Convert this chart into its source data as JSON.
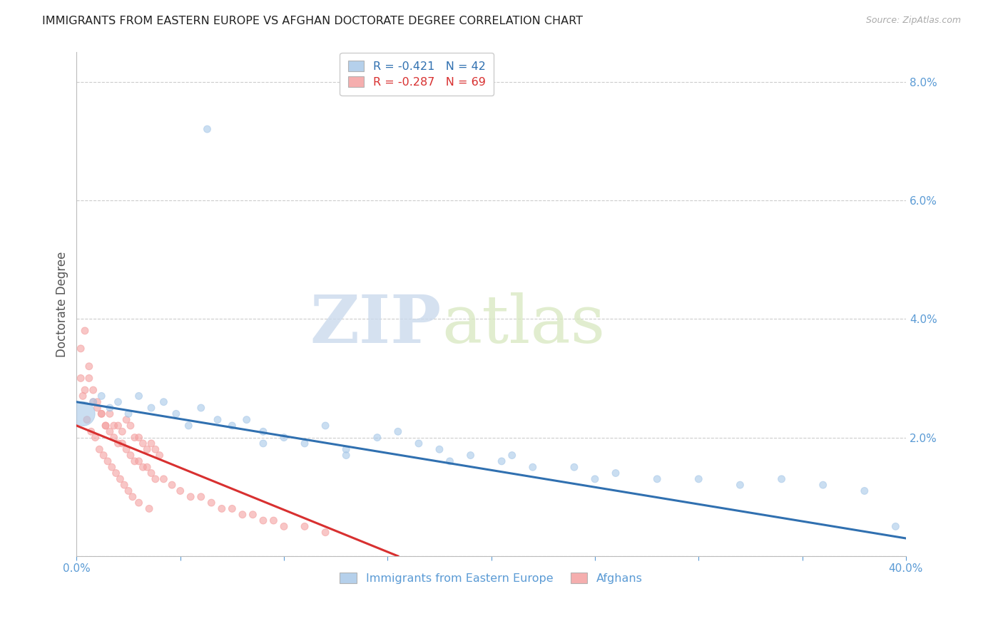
{
  "title": "IMMIGRANTS FROM EASTERN EUROPE VS AFGHAN DOCTORATE DEGREE CORRELATION CHART",
  "source": "Source: ZipAtlas.com",
  "ylabel_left": "Doctorate Degree",
  "watermark_zip": "ZIP",
  "watermark_atlas": "atlas",
  "legend_line1": "R = -0.421   N = 42",
  "legend_line2": "R = -0.287   N = 69",
  "xmin": 0.0,
  "xmax": 0.4,
  "ymin": 0.0,
  "ymax": 0.085,
  "yticks_right": [
    0.0,
    0.02,
    0.04,
    0.06,
    0.08
  ],
  "ytick_labels_right": [
    "",
    "2.0%",
    "4.0%",
    "6.0%",
    "8.0%"
  ],
  "xticks": [
    0.0,
    0.05,
    0.1,
    0.15,
    0.2,
    0.25,
    0.3,
    0.35,
    0.4
  ],
  "xtick_labels": [
    "0.0%",
    "",
    "",
    "",
    "",
    "",
    "",
    "",
    "40.0%"
  ],
  "blue_color": "#a8c8e8",
  "pink_color": "#f4a0a0",
  "blue_line_color": "#3070b0",
  "pink_line_color": "#d83030",
  "blue_scatter_x": [
    0.063,
    0.003,
    0.008,
    0.012,
    0.016,
    0.02,
    0.025,
    0.03,
    0.036,
    0.042,
    0.048,
    0.054,
    0.06,
    0.068,
    0.075,
    0.082,
    0.09,
    0.1,
    0.11,
    0.12,
    0.13,
    0.145,
    0.155,
    0.165,
    0.175,
    0.19,
    0.205,
    0.22,
    0.24,
    0.26,
    0.28,
    0.3,
    0.32,
    0.34,
    0.36,
    0.38,
    0.395,
    0.21,
    0.25,
    0.18,
    0.13,
    0.09
  ],
  "blue_scatter_y": [
    0.072,
    0.024,
    0.026,
    0.027,
    0.025,
    0.026,
    0.024,
    0.027,
    0.025,
    0.026,
    0.024,
    0.022,
    0.025,
    0.023,
    0.022,
    0.023,
    0.021,
    0.02,
    0.019,
    0.022,
    0.018,
    0.02,
    0.021,
    0.019,
    0.018,
    0.017,
    0.016,
    0.015,
    0.015,
    0.014,
    0.013,
    0.013,
    0.012,
    0.013,
    0.012,
    0.011,
    0.005,
    0.017,
    0.013,
    0.016,
    0.017,
    0.019
  ],
  "blue_scatter_s": [
    50,
    600,
    50,
    50,
    50,
    50,
    50,
    50,
    50,
    50,
    50,
    50,
    50,
    50,
    50,
    50,
    50,
    50,
    50,
    50,
    50,
    50,
    50,
    50,
    50,
    50,
    50,
    50,
    50,
    50,
    50,
    50,
    50,
    50,
    50,
    50,
    50,
    50,
    50,
    50,
    50,
    50
  ],
  "pink_scatter_x": [
    0.002,
    0.004,
    0.006,
    0.008,
    0.01,
    0.012,
    0.014,
    0.016,
    0.018,
    0.02,
    0.022,
    0.024,
    0.026,
    0.028,
    0.03,
    0.032,
    0.034,
    0.036,
    0.038,
    0.04,
    0.004,
    0.006,
    0.008,
    0.01,
    0.012,
    0.014,
    0.016,
    0.018,
    0.02,
    0.022,
    0.024,
    0.026,
    0.028,
    0.03,
    0.032,
    0.034,
    0.036,
    0.038,
    0.042,
    0.046,
    0.05,
    0.055,
    0.06,
    0.065,
    0.07,
    0.075,
    0.08,
    0.085,
    0.09,
    0.095,
    0.1,
    0.11,
    0.12,
    0.002,
    0.003,
    0.005,
    0.007,
    0.009,
    0.011,
    0.013,
    0.015,
    0.017,
    0.019,
    0.021,
    0.023,
    0.025,
    0.027,
    0.03,
    0.035
  ],
  "pink_scatter_y": [
    0.035,
    0.028,
    0.03,
    0.026,
    0.025,
    0.024,
    0.022,
    0.024,
    0.022,
    0.022,
    0.021,
    0.023,
    0.022,
    0.02,
    0.02,
    0.019,
    0.018,
    0.019,
    0.018,
    0.017,
    0.038,
    0.032,
    0.028,
    0.026,
    0.024,
    0.022,
    0.021,
    0.02,
    0.019,
    0.019,
    0.018,
    0.017,
    0.016,
    0.016,
    0.015,
    0.015,
    0.014,
    0.013,
    0.013,
    0.012,
    0.011,
    0.01,
    0.01,
    0.009,
    0.008,
    0.008,
    0.007,
    0.007,
    0.006,
    0.006,
    0.005,
    0.005,
    0.004,
    0.03,
    0.027,
    0.023,
    0.021,
    0.02,
    0.018,
    0.017,
    0.016,
    0.015,
    0.014,
    0.013,
    0.012,
    0.011,
    0.01,
    0.009,
    0.008
  ],
  "pink_scatter_s": [
    50,
    50,
    50,
    50,
    50,
    50,
    50,
    50,
    50,
    50,
    50,
    50,
    50,
    50,
    50,
    50,
    50,
    50,
    50,
    50,
    50,
    50,
    50,
    50,
    50,
    50,
    50,
    50,
    50,
    50,
    50,
    50,
    50,
    50,
    50,
    50,
    50,
    50,
    50,
    50,
    50,
    50,
    50,
    50,
    50,
    50,
    50,
    50,
    50,
    50,
    50,
    50,
    50,
    50,
    50,
    50,
    50,
    50,
    50,
    50,
    50,
    50,
    50,
    50,
    50,
    50,
    50,
    50,
    50
  ],
  "blue_trend_x": [
    0.0,
    0.4
  ],
  "blue_trend_y": [
    0.026,
    0.003
  ],
  "pink_trend_x": [
    0.0,
    0.155
  ],
  "pink_trend_y": [
    0.022,
    0.0
  ],
  "legend_label1": "Immigrants from Eastern Europe",
  "legend_label2": "Afghans",
  "title_color": "#222222",
  "axis_color": "#5b9bd5",
  "grid_color": "#cccccc",
  "title_fontsize": 11.5,
  "source_fontsize": 9,
  "axis_fontsize": 11
}
